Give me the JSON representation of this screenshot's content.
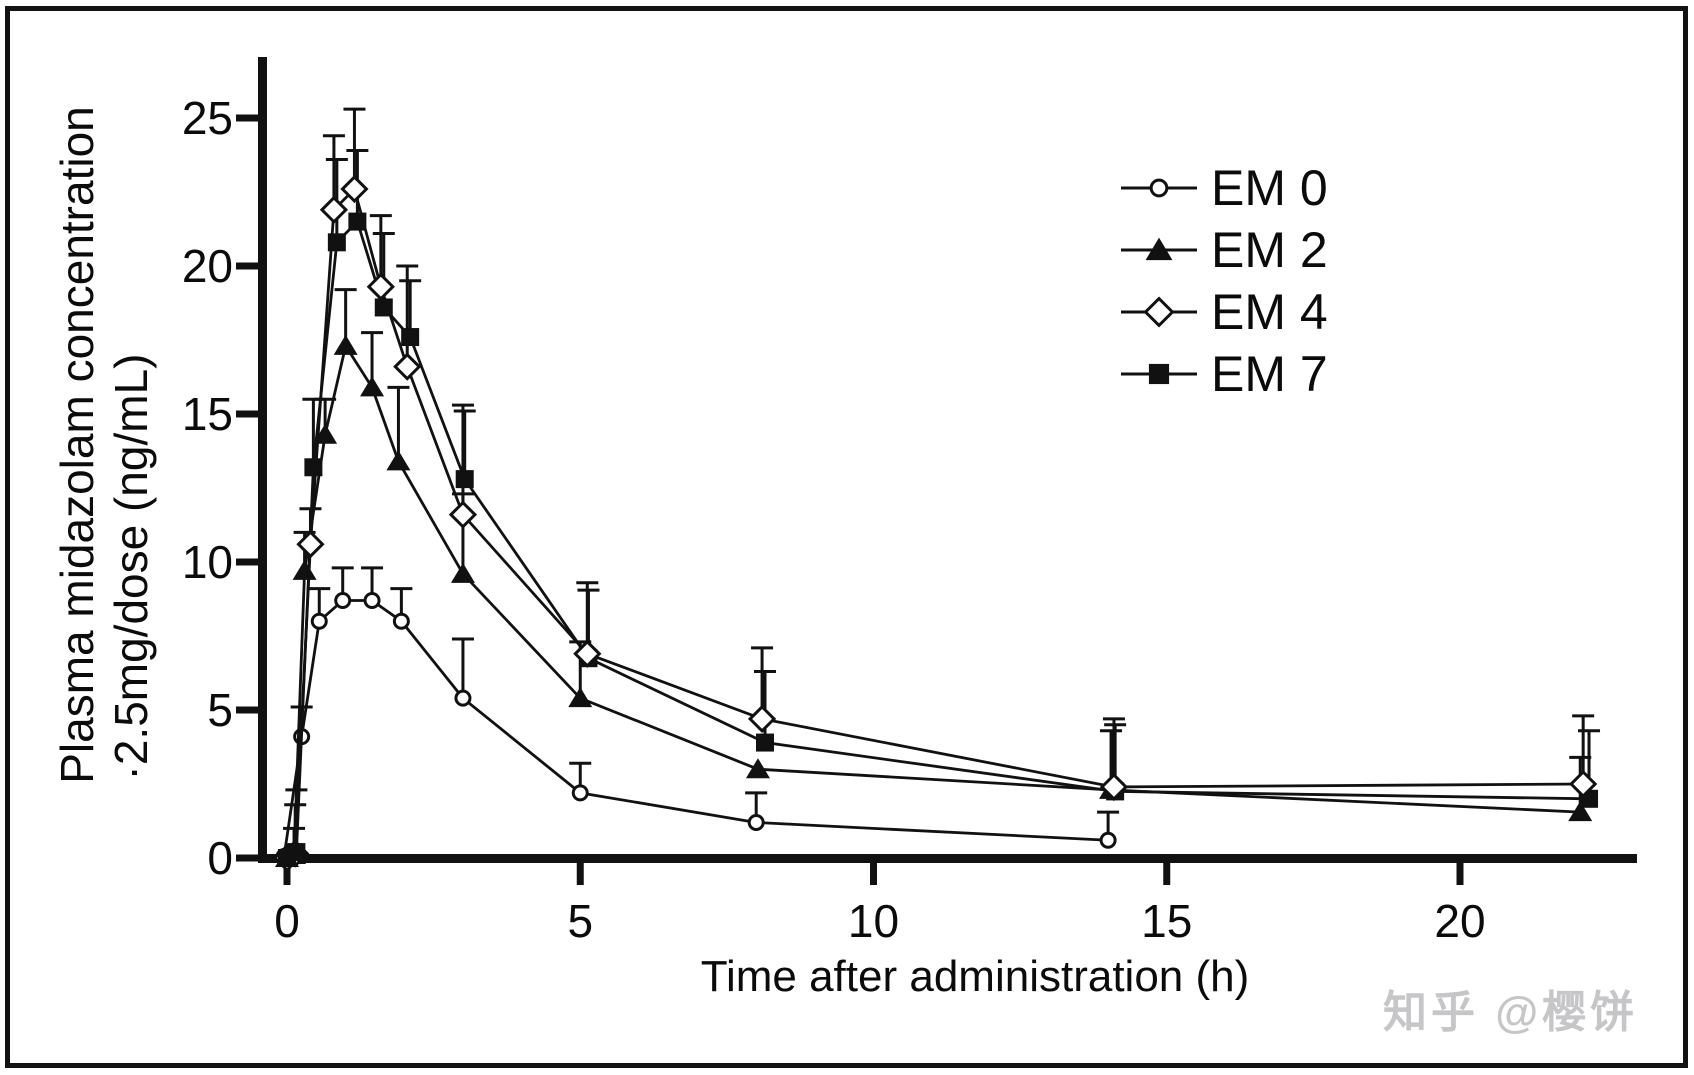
{
  "chart_data": {
    "type": "line",
    "title": "",
    "xlabel": "Time after administration (h)",
    "ylabel_line1": "Plasma midazolam concentration",
    "ylabel_line2": "·2.5mg/dose (ng/mL)",
    "xlim": [
      -0.5,
      23.0
    ],
    "ylim": [
      0,
      27.1
    ],
    "xticks": [
      0,
      5,
      10,
      15,
      20
    ],
    "yticks": [
      0,
      5,
      10,
      15,
      20,
      25
    ],
    "grid": false,
    "error_bars": "upper standard deviation only",
    "legend_position": "upper right inside",
    "series": [
      {
        "name": "EM 0",
        "marker": "circle-open",
        "x": [
          -0.05,
          0.25,
          0.55,
          0.95,
          1.45,
          1.95,
          3,
          5,
          8,
          14
        ],
        "y": [
          0.05,
          4.1,
          8.0,
          8.7,
          8.7,
          8.0,
          5.4,
          2.2,
          1.2,
          0.6
        ],
        "err_up": [
          0,
          1.0,
          1.1,
          1.1,
          1.1,
          1.1,
          2.0,
          1.0,
          1.0,
          0.95
        ]
      },
      {
        "name": "EM 2",
        "marker": "triangle-filled",
        "x": [
          0,
          0.12,
          0.3,
          0.65,
          1.0,
          1.45,
          1.9,
          3,
          5,
          8.03,
          14.05,
          22.05
        ],
        "y": [
          0,
          0.1,
          9.7,
          14.3,
          17.3,
          15.9,
          13.4,
          9.6,
          5.4,
          3.0,
          2.3,
          1.55
        ],
        "err_up": [
          0,
          0.9,
          1.3,
          1.2,
          1.9,
          1.85,
          2.5,
          2.7,
          1.9,
          0,
          2.0,
          1.85
        ]
      },
      {
        "name": "EM 4",
        "marker": "diamond-open",
        "x": [
          0,
          0.14,
          0.4,
          0.8,
          1.15,
          1.6,
          2.05,
          3,
          5.12,
          8.1,
          14.1,
          22.1
        ],
        "y": [
          0,
          0.15,
          10.6,
          21.9,
          22.6,
          19.3,
          16.6,
          11.6,
          6.9,
          4.7,
          2.4,
          2.5
        ],
        "err_up": [
          0,
          1.65,
          1.2,
          2.5,
          2.7,
          2.4,
          3.4,
          3.7,
          2.4,
          2.4,
          2.3,
          2.3
        ]
      },
      {
        "name": "EM 7",
        "marker": "square-filled",
        "x": [
          0,
          0.16,
          0.45,
          0.85,
          1.2,
          1.65,
          2.1,
          3.03,
          5.14,
          8.15,
          14.12,
          22.2
        ],
        "y": [
          0,
          0.2,
          13.2,
          20.8,
          21.5,
          18.6,
          17.6,
          12.8,
          6.75,
          3.9,
          2.25,
          2.0
        ],
        "err_up": [
          0,
          2.1,
          2.3,
          2.8,
          2.4,
          2.5,
          1.9,
          2.3,
          2.3,
          2.4,
          2.25,
          2.3
        ]
      }
    ]
  },
  "watermark": {
    "text": "知乎 @樱饼"
  },
  "colors": {
    "line": "#111111",
    "text": "#0b0b0b",
    "watermark": "#c6c6c8",
    "background": "#ffffff",
    "frame": "#121212"
  }
}
